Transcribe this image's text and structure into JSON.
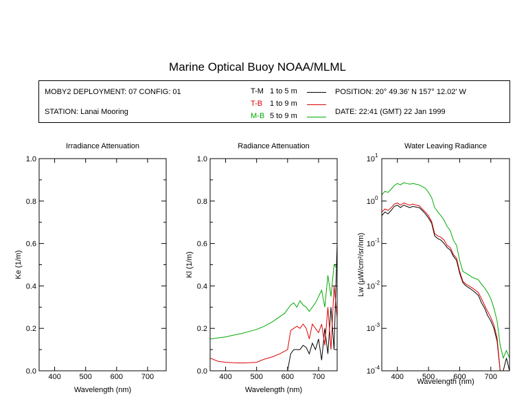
{
  "page": {
    "title": "Marine Optical Buoy NOAA/MLML"
  },
  "info": {
    "deployment": "MOBY2 DEPLOYMENT: 07 CONFIG: 01",
    "station": "STATION: Lanai Mooring",
    "position": "POSITION: 20° 49.36' N  157° 12.02' W",
    "date": "DATE: 22:41 (GMT) 22 Jan 1999"
  },
  "legend": [
    {
      "code": "T-M",
      "range": "1 to 5  m",
      "color": "#000000"
    },
    {
      "code": "T-B",
      "range": "1 to 9  m",
      "color": "#dd0000"
    },
    {
      "code": "M-B",
      "range": "5 to 9  m",
      "color": "#00aa00"
    }
  ],
  "chart_data": [
    {
      "type": "line",
      "title": "Irradiance Attenuation",
      "xlabel": "Wavelength (nm)",
      "ylabel": "Ke  (1/m)",
      "xlim": [
        350,
        760
      ],
      "ylim": [
        0,
        1.0
      ],
      "xticks": [
        "400",
        "500",
        "600",
        "700"
      ],
      "yticks": [
        "0.0",
        "0.2",
        "0.4",
        "0.6",
        "0.8",
        "1.0"
      ],
      "series": []
    },
    {
      "type": "line",
      "title": "Radiance Attenuation",
      "xlabel": "Wavelength (nm)",
      "ylabel": "Kl  (1/m)",
      "xlim": [
        350,
        760
      ],
      "ylim": [
        0,
        1.0
      ],
      "xticks": [
        "400",
        "500",
        "600",
        "700"
      ],
      "yticks": [
        "0.0",
        "0.2",
        "0.4",
        "0.6",
        "0.8",
        "1.0"
      ],
      "series": [
        {
          "name": "T-M",
          "color": "#000000",
          "x": [
            600,
            610,
            620,
            630,
            640,
            650,
            660,
            670,
            680,
            690,
            700,
            710,
            720,
            730,
            740,
            750,
            760
          ],
          "y": [
            0.0,
            0.08,
            0.1,
            0.1,
            0.1,
            0.12,
            0.11,
            0.08,
            0.13,
            0.1,
            0.15,
            0.05,
            0.2,
            0.08,
            0.3,
            0.1,
            0.6
          ]
        },
        {
          "name": "T-B",
          "color": "#dd0000",
          "x": [
            350,
            375,
            400,
            425,
            450,
            475,
            500,
            525,
            550,
            575,
            600,
            610,
            620,
            630,
            640,
            650,
            660,
            670,
            680,
            690,
            700,
            710,
            720,
            730,
            740,
            750,
            760
          ],
          "y": [
            0.06,
            0.045,
            0.04,
            0.038,
            0.037,
            0.038,
            0.04,
            0.055,
            0.065,
            0.08,
            0.1,
            0.19,
            0.2,
            0.21,
            0.2,
            0.22,
            0.2,
            0.15,
            0.22,
            0.2,
            0.18,
            0.22,
            0.12,
            0.3,
            0.1,
            0.4,
            0.25
          ]
        },
        {
          "name": "M-B",
          "color": "#00aa00",
          "x": [
            350,
            375,
            400,
            425,
            450,
            475,
            500,
            525,
            550,
            575,
            590,
            600,
            610,
            620,
            630,
            640,
            650,
            660,
            670,
            680,
            690,
            700,
            710,
            720,
            730,
            740,
            750,
            760
          ],
          "y": [
            0.15,
            0.155,
            0.16,
            0.168,
            0.175,
            0.185,
            0.195,
            0.21,
            0.23,
            0.255,
            0.27,
            0.29,
            0.31,
            0.32,
            0.3,
            0.33,
            0.31,
            0.3,
            0.28,
            0.3,
            0.32,
            0.35,
            0.38,
            0.3,
            0.45,
            0.35,
            0.5,
            0.48
          ]
        }
      ]
    },
    {
      "type": "line",
      "title": "Water Leaving Radiance",
      "xlabel": "Wavelength (nm)",
      "ylabel": "Lw  (µW/cm²/sr/nm)",
      "xlim": [
        350,
        760
      ],
      "ylim": [
        0.0001,
        10
      ],
      "log_y": true,
      "xticks": [
        "400",
        "500",
        "600",
        "700"
      ],
      "ytick_bases": [
        "10",
        "10",
        "10",
        "10",
        "10",
        "10"
      ],
      "ytick_exps": [
        "1",
        "0",
        "-1",
        "-2",
        "-3",
        "-4"
      ],
      "series": [
        {
          "name": "T-M",
          "color": "#000000",
          "x": [
            350,
            360,
            370,
            380,
            390,
            400,
            410,
            420,
            430,
            440,
            450,
            460,
            470,
            480,
            490,
            500,
            510,
            520,
            530,
            540,
            550,
            560,
            570,
            580,
            590,
            600,
            610,
            620,
            630,
            640,
            650,
            660,
            670,
            680,
            690,
            700,
            710,
            720,
            730,
            740,
            750,
            760
          ],
          "y": [
            0.45,
            0.55,
            0.5,
            0.6,
            0.75,
            0.8,
            0.7,
            0.8,
            0.75,
            0.7,
            0.75,
            0.72,
            0.7,
            0.6,
            0.5,
            0.4,
            0.3,
            0.15,
            0.13,
            0.12,
            0.1,
            0.08,
            0.07,
            0.05,
            0.04,
            0.02,
            0.012,
            0.01,
            0.009,
            0.008,
            0.007,
            0.006,
            0.004,
            0.003,
            0.002,
            0.0015,
            0.001,
            0.0005,
            0.0001,
            0.0001,
            0.0002,
            0.0001
          ]
        },
        {
          "name": "T-B",
          "color": "#dd0000",
          "x": [
            350,
            360,
            370,
            380,
            390,
            400,
            410,
            420,
            430,
            440,
            450,
            460,
            470,
            480,
            490,
            500,
            510,
            520,
            530,
            540,
            550,
            560,
            570,
            580,
            590,
            600,
            610,
            620,
            630,
            640,
            650,
            660,
            670,
            680,
            690,
            700,
            710,
            720,
            730,
            740,
            750,
            760
          ],
          "y": [
            0.55,
            0.65,
            0.6,
            0.7,
            0.85,
            0.9,
            0.8,
            0.9,
            0.85,
            0.8,
            0.85,
            0.8,
            0.78,
            0.65,
            0.55,
            0.45,
            0.33,
            0.17,
            0.15,
            0.14,
            0.12,
            0.09,
            0.08,
            0.055,
            0.045,
            0.022,
            0.013,
            0.011,
            0.01,
            0.009,
            0.008,
            0.007,
            0.005,
            0.0035,
            0.0025,
            0.0018,
            0.0012,
            0.0006,
            0.0001,
            0.0001,
            0.0001,
            0.0001
          ]
        },
        {
          "name": "M-B",
          "color": "#00aa00",
          "x": [
            350,
            360,
            370,
            380,
            390,
            400,
            410,
            420,
            430,
            440,
            450,
            460,
            470,
            480,
            490,
            500,
            510,
            520,
            530,
            540,
            550,
            560,
            570,
            580,
            590,
            600,
            610,
            620,
            630,
            640,
            650,
            660,
            670,
            680,
            690,
            700,
            710,
            720,
            730,
            740,
            750,
            760
          ],
          "y": [
            1.4,
            1.7,
            1.6,
            1.9,
            2.3,
            2.6,
            2.4,
            2.7,
            2.6,
            2.5,
            2.6,
            2.5,
            2.4,
            2.2,
            2.0,
            1.6,
            1.2,
            0.7,
            0.55,
            0.45,
            0.35,
            0.25,
            0.2,
            0.12,
            0.09,
            0.04,
            0.022,
            0.02,
            0.018,
            0.016,
            0.015,
            0.014,
            0.011,
            0.009,
            0.007,
            0.005,
            0.003,
            0.0015,
            0.0004,
            0.0002,
            0.0003,
            0.0002
          ]
        }
      ]
    }
  ]
}
